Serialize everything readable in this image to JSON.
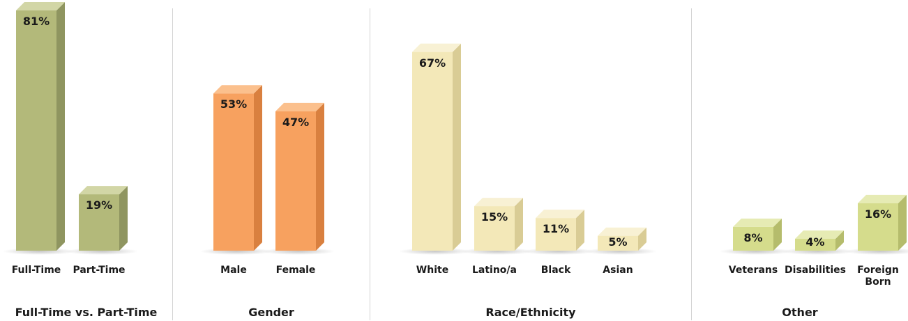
{
  "colors": {
    "fulltime": {
      "front": "#b3b97a",
      "top": "#d2d6a6",
      "side": "#8f9560"
    },
    "gender": {
      "front": "#f7a15f",
      "top": "#fbc08d",
      "side": "#d9803f"
    },
    "race": {
      "front": "#f3e8b8",
      "top": "#f8f1d4",
      "side": "#d9cc95"
    },
    "other": {
      "front": "#d5dc8c",
      "top": "#e6ebb4",
      "side": "#b5bc6c"
    }
  },
  "chart_data": [
    {
      "type": "bar",
      "title": "Full-Time vs. Part-Time",
      "categories": [
        "Full-Time",
        "Part-Time"
      ],
      "values": [
        81,
        19
      ],
      "labels": [
        "81%",
        "19%"
      ],
      "ylim": [
        0,
        100
      ],
      "color_key": "fulltime"
    },
    {
      "type": "bar",
      "title": "Gender",
      "categories": [
        "Male",
        "Female"
      ],
      "values": [
        53,
        47
      ],
      "labels": [
        "53%",
        "47%"
      ],
      "ylim": [
        0,
        100
      ],
      "color_key": "gender"
    },
    {
      "type": "bar",
      "title": "Race/Ethnicity",
      "categories": [
        "White",
        "Latino/a",
        "Black",
        "Asian"
      ],
      "values": [
        67,
        15,
        11,
        5
      ],
      "labels": [
        "67%",
        "15%",
        "11%",
        "5%"
      ],
      "ylim": [
        0,
        100
      ],
      "color_key": "race"
    },
    {
      "type": "bar",
      "title": "Other",
      "categories": [
        "Veterans",
        "Disabilities",
        "Foreign\nBorn"
      ],
      "values": [
        8,
        4,
        16
      ],
      "labels": [
        "8%",
        "4%",
        "16%"
      ],
      "ylim": [
        0,
        100
      ],
      "color_key": "other"
    }
  ]
}
